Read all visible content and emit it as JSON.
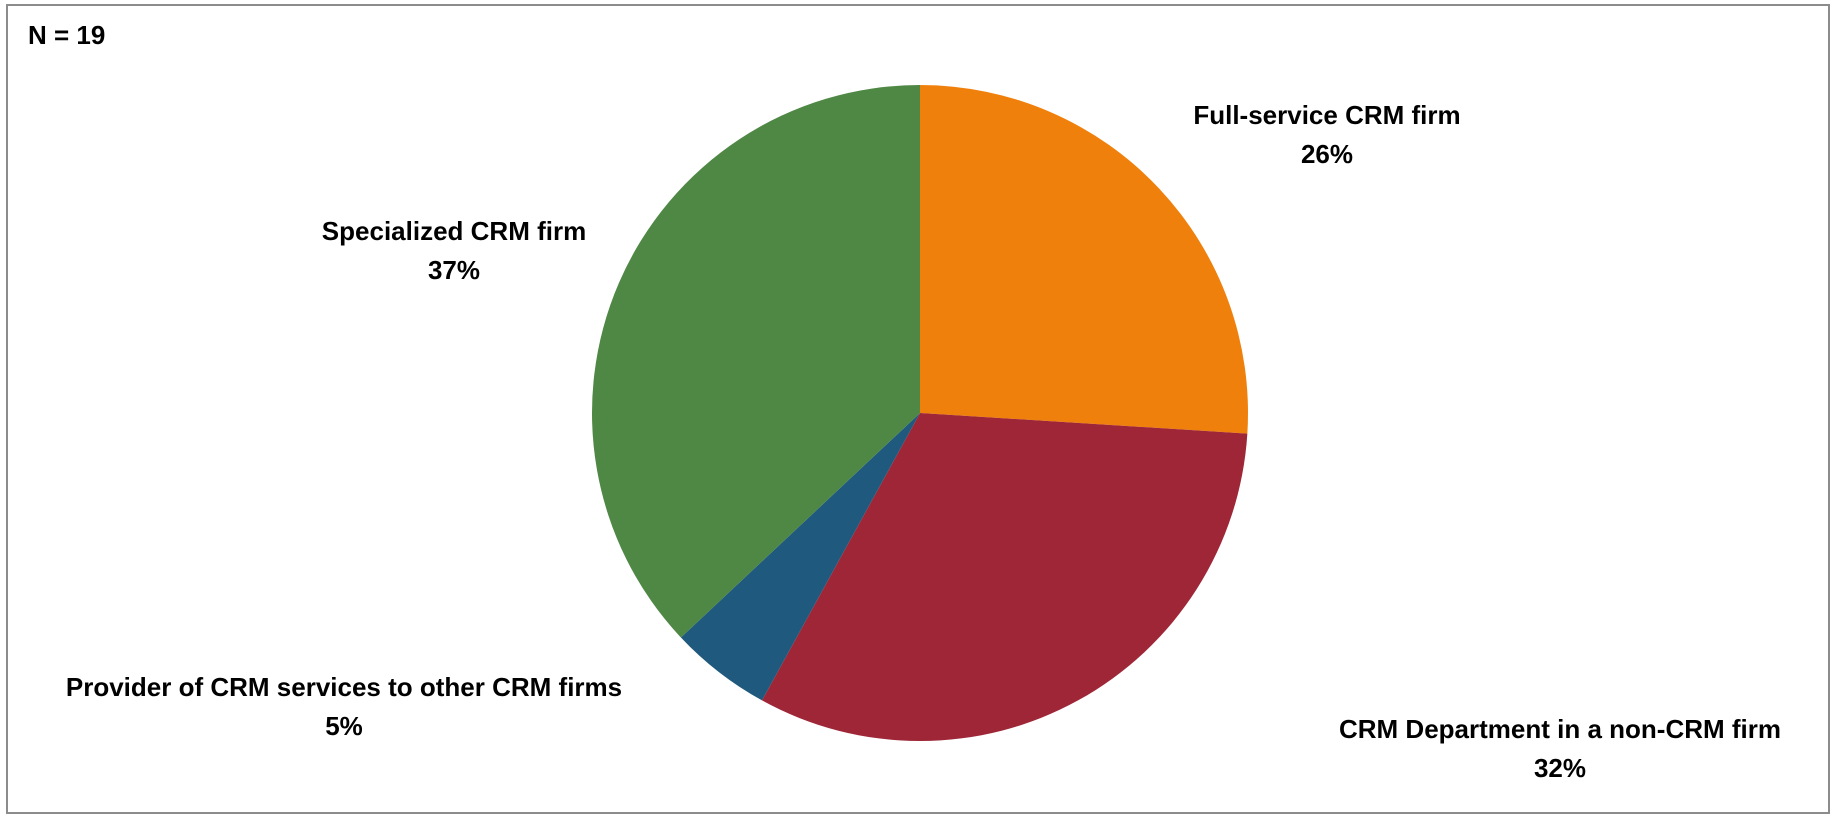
{
  "sample_note": "N = 19",
  "chart_data": {
    "type": "pie",
    "title": "",
    "categories": [
      "Full-service CRM firm",
      "CRM Department in a non-CRM firm",
      "Provider of CRM services to other CRM firms",
      "Specialized CRM firm"
    ],
    "values": [
      26,
      32,
      5,
      37
    ],
    "value_labels": [
      "26%",
      "32%",
      "5%",
      "37%"
    ],
    "colors": [
      "#F0800C",
      "#9E2637",
      "#1F597D",
      "#4F8744"
    ],
    "start_angle_deg": 0,
    "direction": "clockwise",
    "legend": "none"
  }
}
